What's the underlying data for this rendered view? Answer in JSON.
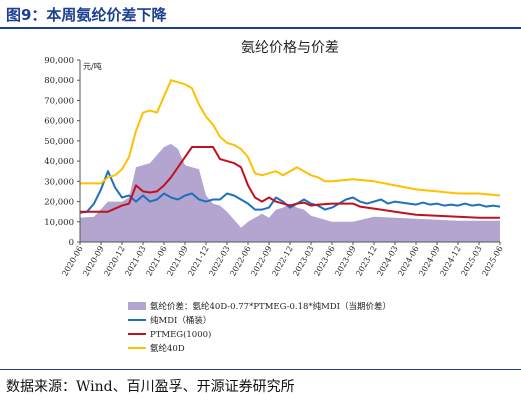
{
  "figure": {
    "title": "图9：本周氨纶价差下降",
    "source": "数据来源：Wind、百川盈孚、开源证券研究所"
  },
  "colors": {
    "spread_fill": "#b3a5cf",
    "mdi": "#1f6fc0",
    "ptmeg": "#c0111f",
    "spandex": "#ffc000",
    "brand": "#1d3f8f"
  },
  "chart_data": {
    "type": "line",
    "title": "氨纶价格与价差",
    "unit_label": "元/吨",
    "ylim": [
      0,
      90000
    ],
    "yticks": [
      "0",
      "10,000",
      "20,000",
      "30,000",
      "40,000",
      "50,000",
      "60,000",
      "70,000",
      "80,000",
      "90,000"
    ],
    "xlim": [
      "2020-06",
      "2025-06"
    ],
    "xticks": [
      "2020-06",
      "2020-09",
      "2020-12",
      "2021-03",
      "2021-06",
      "2021-09",
      "2021-12",
      "2022-03",
      "2022-06",
      "2022-09",
      "2022-12",
      "2023-03",
      "2023-06",
      "2023-09",
      "2023-12",
      "2024-03",
      "2024-06",
      "2024-09",
      "2024-12",
      "2025-03",
      "2025-06"
    ],
    "grid": false,
    "legend_position": "bottom",
    "series": [
      {
        "name": "氨纶价差：氨纶40D-0.77*PTMEG-0.18*纯MDI（当期价差）",
        "style": "area",
        "points": [
          [
            "2020-06",
            12000
          ],
          [
            "2020-08",
            12500
          ],
          [
            "2020-10",
            20000
          ],
          [
            "2020-12",
            20000
          ],
          [
            "2021-01",
            22000
          ],
          [
            "2021-02",
            37000
          ],
          [
            "2021-04",
            39000
          ],
          [
            "2021-05",
            43000
          ],
          [
            "2021-06",
            47000
          ],
          [
            "2021-07",
            48500
          ],
          [
            "2021-08",
            46000
          ],
          [
            "2021-09",
            38000
          ],
          [
            "2021-10",
            37000
          ],
          [
            "2021-11",
            36000
          ],
          [
            "2021-12",
            23000
          ],
          [
            "2022-01",
            19000
          ],
          [
            "2022-02",
            18000
          ],
          [
            "2022-03",
            15000
          ],
          [
            "2022-04",
            11000
          ],
          [
            "2022-05",
            7000
          ],
          [
            "2022-06",
            10000
          ],
          [
            "2022-07",
            12000
          ],
          [
            "2022-08",
            14000
          ],
          [
            "2022-09",
            12000
          ],
          [
            "2022-10",
            16000
          ],
          [
            "2022-11",
            17000
          ],
          [
            "2022-12",
            19000
          ],
          [
            "2023-01",
            17000
          ],
          [
            "2023-02",
            16000
          ],
          [
            "2023-03",
            13000
          ],
          [
            "2023-04",
            12000
          ],
          [
            "2023-05",
            11000
          ],
          [
            "2023-06",
            10000
          ],
          [
            "2023-09",
            10000
          ],
          [
            "2023-12",
            12500
          ],
          [
            "2024-03",
            12000
          ],
          [
            "2024-06",
            11500
          ],
          [
            "2024-09",
            11000
          ],
          [
            "2024-12",
            10500
          ],
          [
            "2025-03",
            10500
          ],
          [
            "2025-06",
            10500
          ]
        ]
      },
      {
        "name": "纯MDI（桶装）",
        "style": "line",
        "points": [
          [
            "2020-06",
            14500
          ],
          [
            "2020-07",
            15000
          ],
          [
            "2020-08",
            19000
          ],
          [
            "2020-09",
            26000
          ],
          [
            "2020-10",
            35000
          ],
          [
            "2020-11",
            27000
          ],
          [
            "2020-12",
            22000
          ],
          [
            "2021-01",
            23000
          ],
          [
            "2021-02",
            20000
          ],
          [
            "2021-03",
            23000
          ],
          [
            "2021-04",
            20000
          ],
          [
            "2021-05",
            21000
          ],
          [
            "2021-06",
            24000
          ],
          [
            "2021-07",
            22000
          ],
          [
            "2021-08",
            21000
          ],
          [
            "2021-09",
            23000
          ],
          [
            "2021-10",
            24000
          ],
          [
            "2021-11",
            21000
          ],
          [
            "2021-12",
            20000
          ],
          [
            "2022-01",
            21000
          ],
          [
            "2022-02",
            21000
          ],
          [
            "2022-03",
            24000
          ],
          [
            "2022-04",
            23000
          ],
          [
            "2022-05",
            21000
          ],
          [
            "2022-06",
            19000
          ],
          [
            "2022-07",
            16000
          ],
          [
            "2022-08",
            16000
          ],
          [
            "2022-09",
            17000
          ],
          [
            "2022-10",
            22000
          ],
          [
            "2022-11",
            20000
          ],
          [
            "2022-12",
            17000
          ],
          [
            "2023-01",
            19000
          ],
          [
            "2023-02",
            21000
          ],
          [
            "2023-03",
            19000
          ],
          [
            "2023-04",
            18000
          ],
          [
            "2023-05",
            16000
          ],
          [
            "2023-06",
            17000
          ],
          [
            "2023-07",
            19000
          ],
          [
            "2023-08",
            21000
          ],
          [
            "2023-09",
            22000
          ],
          [
            "2023-10",
            20000
          ],
          [
            "2023-11",
            19000
          ],
          [
            "2023-12",
            20000
          ],
          [
            "2024-01",
            21000
          ],
          [
            "2024-02",
            19000
          ],
          [
            "2024-03",
            20000
          ],
          [
            "2024-04",
            19500
          ],
          [
            "2024-05",
            19000
          ],
          [
            "2024-06",
            18500
          ],
          [
            "2024-07",
            19500
          ],
          [
            "2024-08",
            18500
          ],
          [
            "2024-09",
            19000
          ],
          [
            "2024-10",
            18000
          ],
          [
            "2024-11",
            18500
          ],
          [
            "2024-12",
            18000
          ],
          [
            "2025-01",
            19000
          ],
          [
            "2025-02",
            18000
          ],
          [
            "2025-03",
            18500
          ],
          [
            "2025-04",
            17500
          ],
          [
            "2025-05",
            18000
          ],
          [
            "2025-06",
            17500
          ]
        ]
      },
      {
        "name": "PTMEG(1000)",
        "style": "line",
        "points": [
          [
            "2020-06",
            15000
          ],
          [
            "2020-10",
            15000
          ],
          [
            "2020-12",
            18000
          ],
          [
            "2021-01",
            19000
          ],
          [
            "2021-02",
            28000
          ],
          [
            "2021-03",
            25000
          ],
          [
            "2021-04",
            24500
          ],
          [
            "2021-05",
            25000
          ],
          [
            "2021-06",
            28000
          ],
          [
            "2021-07",
            32000
          ],
          [
            "2021-08",
            37000
          ],
          [
            "2021-09",
            42000
          ],
          [
            "2021-10",
            47000
          ],
          [
            "2021-11",
            47000
          ],
          [
            "2021-12",
            47000
          ],
          [
            "2022-01",
            47000
          ],
          [
            "2022-02",
            41000
          ],
          [
            "2022-03",
            40000
          ],
          [
            "2022-04",
            39000
          ],
          [
            "2022-05",
            37000
          ],
          [
            "2022-06",
            28000
          ],
          [
            "2022-07",
            22000
          ],
          [
            "2022-08",
            20000
          ],
          [
            "2022-09",
            22000
          ],
          [
            "2022-10",
            20000
          ],
          [
            "2022-11",
            19000
          ],
          [
            "2022-12",
            18000
          ],
          [
            "2023-01",
            19000
          ],
          [
            "2023-02",
            19500
          ],
          [
            "2023-03",
            18000
          ],
          [
            "2023-04",
            18500
          ],
          [
            "2023-06",
            19000
          ],
          [
            "2023-09",
            19000
          ],
          [
            "2023-10",
            17500
          ],
          [
            "2023-12",
            16500
          ],
          [
            "2024-03",
            15000
          ],
          [
            "2024-06",
            13500
          ],
          [
            "2024-09",
            13000
          ],
          [
            "2024-12",
            12500
          ],
          [
            "2025-03",
            12000
          ],
          [
            "2025-06",
            12000
          ]
        ]
      },
      {
        "name": "氨纶40D",
        "style": "line",
        "points": [
          [
            "2020-06",
            29000
          ],
          [
            "2020-09",
            29000
          ],
          [
            "2020-10",
            32000
          ],
          [
            "2020-11",
            33000
          ],
          [
            "2020-12",
            36000
          ],
          [
            "2021-01",
            42000
          ],
          [
            "2021-02",
            55000
          ],
          [
            "2021-03",
            64000
          ],
          [
            "2021-04",
            65000
          ],
          [
            "2021-05",
            64000
          ],
          [
            "2021-06",
            72000
          ],
          [
            "2021-07",
            80000
          ],
          [
            "2021-08",
            79000
          ],
          [
            "2021-09",
            78000
          ],
          [
            "2021-10",
            76000
          ],
          [
            "2021-11",
            68000
          ],
          [
            "2021-12",
            62000
          ],
          [
            "2022-01",
            58000
          ],
          [
            "2022-02",
            52000
          ],
          [
            "2022-03",
            49000
          ],
          [
            "2022-04",
            48000
          ],
          [
            "2022-05",
            46000
          ],
          [
            "2022-06",
            42000
          ],
          [
            "2022-07",
            34000
          ],
          [
            "2022-08",
            33000
          ],
          [
            "2022-09",
            34000
          ],
          [
            "2022-10",
            35000
          ],
          [
            "2022-11",
            33000
          ],
          [
            "2022-12",
            35000
          ],
          [
            "2023-01",
            37000
          ],
          [
            "2023-02",
            35000
          ],
          [
            "2023-03",
            33000
          ],
          [
            "2023-04",
            32000
          ],
          [
            "2023-05",
            30000
          ],
          [
            "2023-06",
            30000
          ],
          [
            "2023-09",
            31000
          ],
          [
            "2023-12",
            30000
          ],
          [
            "2024-03",
            28000
          ],
          [
            "2024-06",
            26000
          ],
          [
            "2024-09",
            25000
          ],
          [
            "2024-12",
            24000
          ],
          [
            "2025-03",
            24000
          ],
          [
            "2025-06",
            23000
          ]
        ]
      }
    ]
  }
}
